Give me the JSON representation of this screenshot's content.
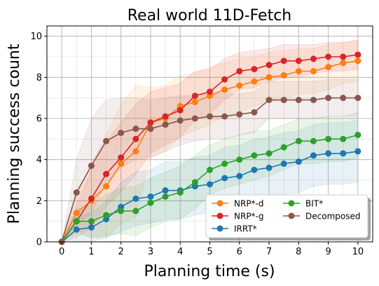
{
  "chart_data": {
    "type": "line",
    "title": "Real world 11D-Fetch",
    "xlabel": "Planning time (s)",
    "ylabel": "Planning success count",
    "xlim": [
      -0.5,
      10.5
    ],
    "ylim": [
      0,
      10.5
    ],
    "xticks": [
      "0",
      "1",
      "2",
      "3",
      "4",
      "5",
      "6",
      "7",
      "8",
      "9",
      "10"
    ],
    "yticks": [
      "0",
      "2",
      "4",
      "6",
      "8",
      "10"
    ],
    "grid": true,
    "legend_position": "lower-right",
    "x": [
      0,
      0.5,
      1,
      1.5,
      2,
      2.5,
      3,
      3.5,
      4,
      4.5,
      5,
      5.5,
      6,
      6.5,
      7,
      7.5,
      8,
      8.5,
      9,
      9.5,
      10
    ],
    "series": [
      {
        "name": "NRP*-d",
        "color": "#ff7f0e",
        "values": [
          0,
          1.4,
          2.0,
          2.7,
          3.8,
          4.4,
          5.8,
          6.0,
          6.6,
          6.8,
          7.1,
          7.4,
          7.6,
          7.8,
          8.0,
          8.1,
          8.3,
          8.3,
          8.5,
          8.7,
          8.8
        ],
        "band": [
          0,
          0.8,
          1.8,
          2.5,
          2.9,
          3.2,
          1.7,
          1.6,
          1.5,
          1.4,
          1.4,
          1.3,
          1.3,
          1.2,
          1.2,
          1.2,
          1.1,
          1.1,
          1.1,
          1.0,
          1.0
        ]
      },
      {
        "name": "NRP*-g",
        "color": "#d62728",
        "values": [
          0,
          1.0,
          2.1,
          3.3,
          4.1,
          5.0,
          5.8,
          6.1,
          6.4,
          7.1,
          7.3,
          7.9,
          8.3,
          8.4,
          8.6,
          8.8,
          8.8,
          8.9,
          9.0,
          9.0,
          9.1
        ],
        "band": [
          0,
          0.8,
          1.4,
          1.6,
          1.7,
          1.7,
          1.5,
          1.4,
          1.3,
          1.2,
          1.1,
          1.0,
          0.9,
          0.9,
          0.8,
          0.8,
          0.8,
          0.7,
          0.7,
          0.7,
          0.7
        ]
      },
      {
        "name": "IRRT*",
        "color": "#1f77b4",
        "values": [
          0,
          0.6,
          0.7,
          1.1,
          1.7,
          2.1,
          2.2,
          2.5,
          2.5,
          2.7,
          2.8,
          3.1,
          3.2,
          3.5,
          3.6,
          3.8,
          3.9,
          4.2,
          4.3,
          4.3,
          4.4
        ],
        "band": [
          0,
          0.6,
          0.7,
          0.9,
          1.2,
          1.3,
          1.3,
          1.4,
          1.4,
          1.4,
          1.4,
          1.5,
          1.5,
          1.5,
          1.5,
          1.5,
          1.5,
          1.5,
          1.5,
          1.5,
          1.5
        ]
      },
      {
        "name": "BIT*",
        "color": "#2ca02c",
        "values": [
          0,
          1.0,
          1.0,
          1.3,
          1.5,
          1.5,
          1.9,
          2.2,
          2.4,
          2.9,
          3.5,
          3.8,
          4.0,
          4.2,
          4.3,
          4.6,
          4.9,
          4.9,
          5.0,
          5.0,
          5.2
        ],
        "band": [
          0,
          0.6,
          0.8,
          1.0,
          1.1,
          1.2,
          1.2,
          1.2,
          1.3,
          1.3,
          1.2,
          1.2,
          1.2,
          1.2,
          1.1,
          1.1,
          1.1,
          1.1,
          1.1,
          1.1,
          1.1
        ]
      },
      {
        "name": "Decomposed",
        "color": "#8c564b",
        "values": [
          0,
          2.4,
          3.7,
          4.9,
          5.3,
          5.5,
          5.5,
          5.7,
          5.9,
          6.0,
          6.1,
          6.1,
          6.2,
          6.3,
          6.9,
          6.9,
          6.9,
          6.9,
          7.0,
          7.0,
          7.0
        ],
        "band": [
          0,
          1.6,
          2.3,
          2.0,
          1.7,
          1.5,
          1.4,
          1.3,
          1.2,
          1.1,
          1.1,
          1.1,
          1.0,
          1.0,
          0.9,
          0.9,
          0.9,
          0.9,
          0.9,
          0.9,
          0.9
        ]
      }
    ],
    "legend_order": [
      "NRP*-d",
      "BIT*",
      "NRP*-g",
      "Decomposed",
      "IRRT*"
    ]
  }
}
